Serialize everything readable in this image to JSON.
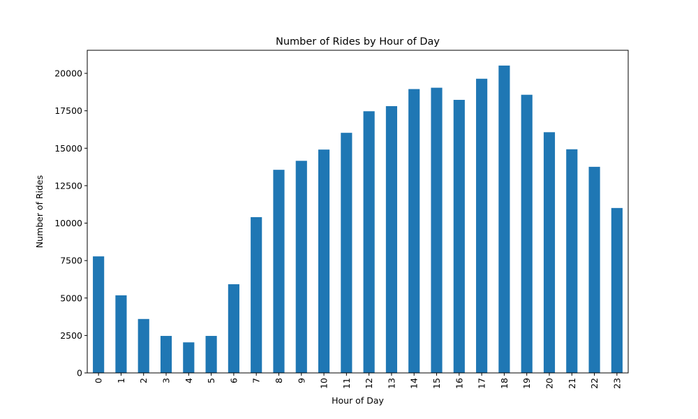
{
  "chart_data": {
    "type": "bar",
    "title": "Number of Rides by Hour of Day",
    "xlabel": "Hour of Day",
    "ylabel": "Number of Rides",
    "categories": [
      "0",
      "1",
      "2",
      "3",
      "4",
      "5",
      "6",
      "7",
      "8",
      "9",
      "10",
      "11",
      "12",
      "13",
      "14",
      "15",
      "16",
      "17",
      "18",
      "19",
      "20",
      "21",
      "22",
      "23"
    ],
    "values": [
      7780,
      5180,
      3600,
      2470,
      2040,
      2470,
      5920,
      10400,
      13560,
      14160,
      14910,
      16030,
      17470,
      17810,
      18950,
      19040,
      18230,
      19640,
      20520,
      18570,
      16070,
      14930,
      13760,
      11010
    ],
    "ylim": [
      0,
      21540
    ],
    "yticks": [
      0,
      2500,
      5000,
      7500,
      10000,
      12500,
      15000,
      17500,
      20000
    ],
    "grid": false,
    "legend": "none",
    "bar_color": "#1f77b4"
  }
}
